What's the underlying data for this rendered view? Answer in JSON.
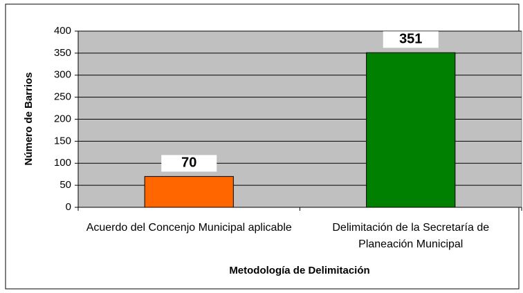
{
  "chart_data": {
    "type": "bar",
    "x_label": "Metodología de Delimitación",
    "y_label": "Número de Barrios",
    "categories": [
      "Acuerdo del Concenjo Municipal aplicable",
      "Delimitación de la Secretaría de Planeación Municipal"
    ],
    "values": [
      70,
      351
    ],
    "colors": [
      "#ff6600",
      "#008000"
    ],
    "ylim": [
      0,
      400
    ],
    "yticks": [
      0,
      50,
      100,
      150,
      200,
      250,
      300,
      350,
      400
    ],
    "grid": true
  }
}
